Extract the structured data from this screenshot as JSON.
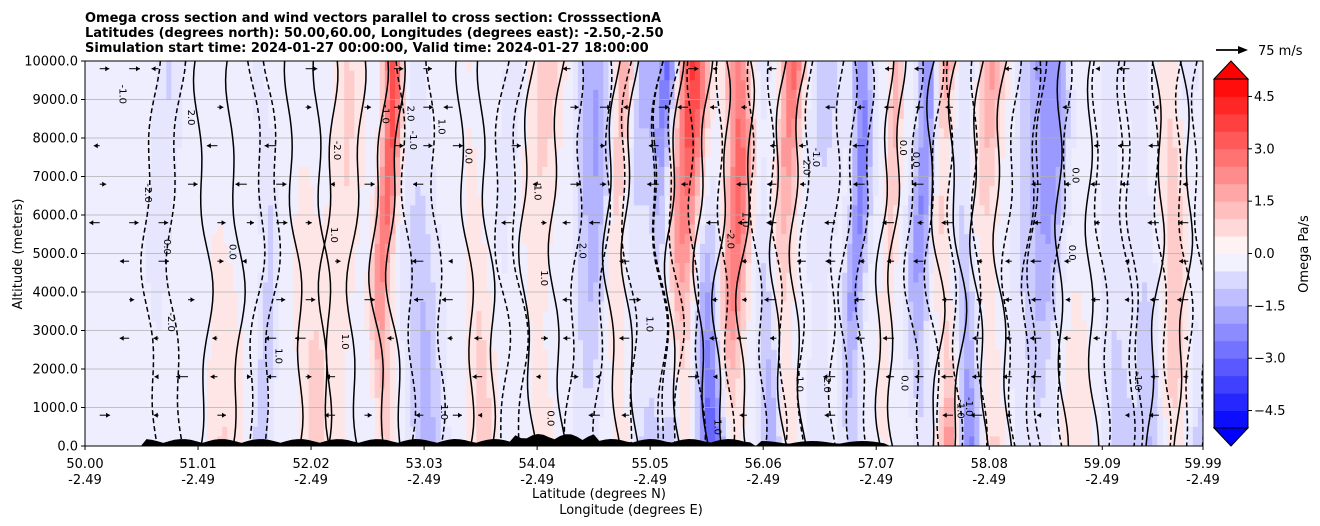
{
  "chart_data": {
    "type": "contour-cross-section",
    "title_lines": [
      "Omega cross section and wind vectors parallel to cross section: CrosssectionA",
      "Latitudes (degrees north): 50.00,60.00, Longitudes (degrees east): -2.50,-2.50",
      "Simulation start time: 2024-01-27 00:00:00, Valid time: 2024-01-27 18:00:00"
    ],
    "ylabel": "Altitude (meters)",
    "xlabel_lat": "Latitude (degrees N)",
    "xlabel_lon": "Longitude (degrees E)",
    "ylim": [
      0,
      10000
    ],
    "xlim": [
      50.0,
      59.99
    ],
    "y_ticks": [
      "0.0",
      "1000.0",
      "2000.0",
      "3000.0",
      "4000.0",
      "5000.0",
      "6000.0",
      "7000.0",
      "8000.0",
      "9000.0",
      "10000.0"
    ],
    "y_tick_values": [
      0,
      1000,
      2000,
      3000,
      4000,
      5000,
      6000,
      7000,
      8000,
      9000,
      10000
    ],
    "x_ticks_lat": [
      "50.00",
      "51.01",
      "52.02",
      "53.03",
      "54.04",
      "55.05",
      "56.06",
      "57.07",
      "58.08",
      "59.09",
      "59.99"
    ],
    "x_ticks_lon": [
      "-2.49",
      "-2.49",
      "-2.49",
      "-2.49",
      "-2.49",
      "-2.49",
      "-2.49",
      "-2.49",
      "-2.49",
      "-2.49",
      "-2.49"
    ],
    "x_tick_values": [
      50.0,
      51.01,
      52.02,
      53.03,
      54.04,
      55.05,
      56.06,
      57.07,
      58.08,
      59.09,
      59.99
    ],
    "grid": true,
    "colorbar": {
      "label": "Omega Pa/s",
      "ticks": [
        "−4.5",
        "−3.0",
        "−1.5",
        "0.0",
        "1.5",
        "3.0",
        "4.5"
      ],
      "tick_values": [
        -4.5,
        -3.0,
        -1.5,
        0.0,
        1.5,
        3.0,
        4.5
      ],
      "vmin": -5.0,
      "vmax": 5.0,
      "extend": "both"
    },
    "quiver_key_label": "75 m/s",
    "contour_labels": [
      "0.0",
      "1.0",
      "-1.0",
      "2.0",
      "-2.0",
      "0.0",
      "1.0",
      "-1.0"
    ],
    "colors": {
      "negative": "#0000ff",
      "positive": "#ff0000",
      "neutral": "#ffffff"
    }
  }
}
